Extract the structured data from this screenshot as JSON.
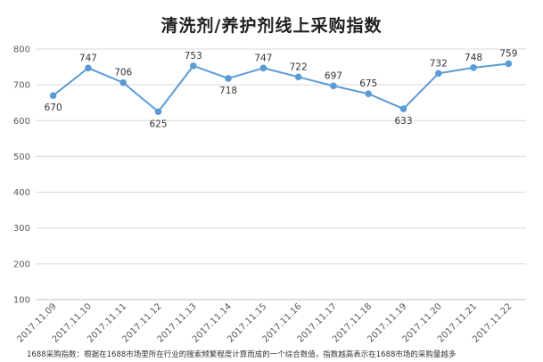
{
  "chart_data": {
    "type": "line",
    "title": "清洗剂/养护剂线上采购指数",
    "xlabel": "",
    "ylabel": "",
    "categories": [
      "2017.11.09",
      "2017.11.10",
      "2017.11.11",
      "2017.11.12",
      "2017.11.13",
      "2017.11.14",
      "2017.11.15",
      "2017.11.16",
      "2017.11.17",
      "2017.11.18",
      "2017.11.19",
      "2017.11.20",
      "2017.11.21",
      "2017.11.22"
    ],
    "series": [
      {
        "values": [
          670,
          747,
          706,
          625,
          753,
          718,
          747,
          722,
          697,
          675,
          633,
          732,
          748,
          759
        ]
      }
    ],
    "ylim": [
      100,
      800
    ],
    "yticks": [
      100,
      200,
      300,
      400,
      500,
      600,
      700,
      800
    ],
    "grid": true,
    "legend": "none",
    "colors": {
      "line": "#5b9bd5",
      "grid": "#d9d9d9",
      "axis": "#bfbfbf"
    }
  },
  "footnote": "1688采购指数：根据在1688市场里所在行业的搜索频繁程度计算而成的一个综合数值，指数越高表示在1688市场的采购量越多"
}
